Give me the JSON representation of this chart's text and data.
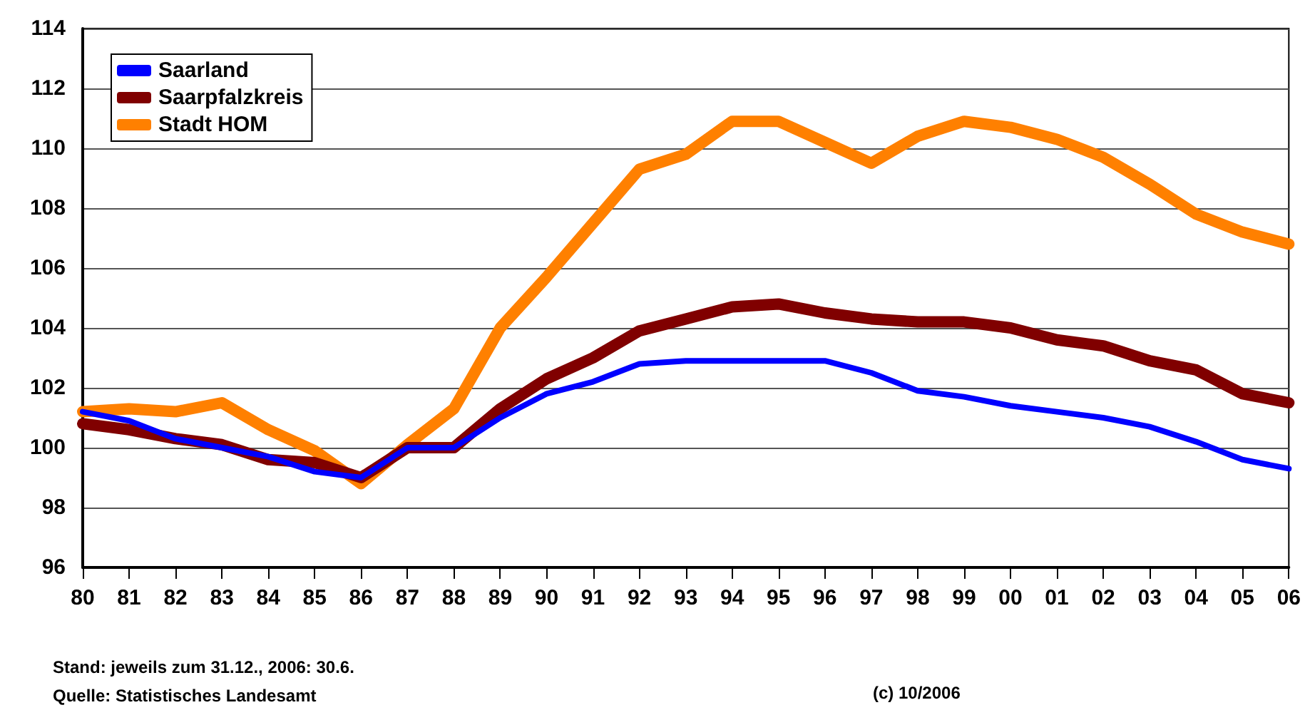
{
  "chart_data": {
    "type": "line",
    "categories": [
      "80",
      "81",
      "82",
      "83",
      "84",
      "85",
      "86",
      "87",
      "88",
      "89",
      "90",
      "91",
      "92",
      "93",
      "94",
      "95",
      "96",
      "97",
      "98",
      "99",
      "00",
      "01",
      "02",
      "03",
      "04",
      "05",
      "06"
    ],
    "series": [
      {
        "name": "Saarland",
        "color": "#0000ff",
        "values": [
          101.2,
          100.9,
          100.3,
          100.0,
          99.7,
          99.2,
          99.0,
          100.0,
          100.0,
          101.0,
          101.8,
          102.2,
          102.8,
          102.9,
          102.9,
          102.9,
          102.9,
          102.5,
          101.9,
          101.7,
          101.4,
          101.2,
          101.0,
          100.7,
          100.2,
          99.6,
          99.3
        ]
      },
      {
        "name": "Saarpfalzkreis",
        "color": "#800000",
        "values": [
          100.8,
          100.6,
          100.3,
          100.1,
          99.6,
          99.5,
          99.0,
          100.0,
          100.0,
          101.3,
          102.3,
          103.0,
          103.9,
          104.3,
          104.7,
          104.8,
          104.5,
          104.3,
          104.2,
          104.2,
          104.0,
          103.6,
          103.4,
          102.9,
          102.6,
          101.8,
          101.5
        ]
      },
      {
        "name": "Stadt HOM",
        "color": "#ff8000",
        "values": [
          101.2,
          101.3,
          101.2,
          101.5,
          100.6,
          99.9,
          98.8,
          100.1,
          101.3,
          104.0,
          105.7,
          107.5,
          109.3,
          109.8,
          110.9,
          110.9,
          110.2,
          109.5,
          110.4,
          110.9,
          110.7,
          110.3,
          109.7,
          108.8,
          107.8,
          107.2,
          106.8
        ]
      }
    ],
    "ylim": [
      96,
      114
    ],
    "yticks": [
      96,
      98,
      100,
      102,
      104,
      106,
      108,
      110,
      112,
      114
    ],
    "grid": "y",
    "legend": "top left",
    "marker": "none",
    "line_style": "solid",
    "annotations": [
      "Stand: jeweils zum 31.12., 2006: 30.6.",
      "Quelle: Statistisches Landesamt",
      "(c) 10/2006"
    ]
  }
}
